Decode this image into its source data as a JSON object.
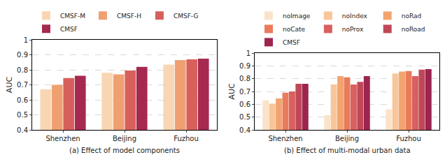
{
  "chart_data": [
    {
      "type": "bar",
      "title": "(a) Effect of model components",
      "ylabel": "AUC",
      "categories": [
        "Shenzhen",
        "Beijing",
        "Fuzhou"
      ],
      "series": [
        {
          "name": "CMSF-M",
          "color": "#f8d6b3",
          "values": [
            0.67,
            0.78,
            0.835
          ]
        },
        {
          "name": "CMSF-H",
          "color": "#efa070",
          "values": [
            0.7,
            0.77,
            0.865
          ]
        },
        {
          "name": "CMSF-G",
          "color": "#d8605c",
          "values": [
            0.745,
            0.795,
            0.87
          ]
        },
        {
          "name": "CMSF",
          "color": "#a6294f",
          "values": [
            0.76,
            0.82,
            0.875
          ]
        }
      ],
      "ylim": [
        0.4,
        1.0
      ],
      "yticks": [
        0.4,
        0.5,
        0.6,
        0.7,
        0.8,
        0.9,
        1.0
      ],
      "grid": true,
      "legend": "upper left"
    },
    {
      "type": "bar",
      "title": "(b) Effect of multi-modal urban data",
      "ylabel": "AUC",
      "categories": [
        "Shenzhen",
        "Beijing",
        "Fuzhou"
      ],
      "series": [
        {
          "name": "noImage",
          "color": "#fbe3c9",
          "values": [
            0.63,
            0.515,
            0.56
          ]
        },
        {
          "name": "noIndex",
          "color": "#f8c69a",
          "values": [
            0.605,
            0.755,
            0.84
          ]
        },
        {
          "name": "noRad",
          "color": "#f2a470",
          "values": [
            0.645,
            0.82,
            0.855
          ]
        },
        {
          "name": "noCate",
          "color": "#e97b5b",
          "values": [
            0.69,
            0.81,
            0.86
          ]
        },
        {
          "name": "noProx",
          "color": "#d8605f",
          "values": [
            0.7,
            0.755,
            0.82
          ]
        },
        {
          "name": "noRoad",
          "color": "#bf4757",
          "values": [
            0.76,
            0.775,
            0.87
          ]
        },
        {
          "name": "CMSF",
          "color": "#9c2550",
          "values": [
            0.76,
            0.82,
            0.875
          ]
        }
      ],
      "ylim": [
        0.4,
        1.0
      ],
      "yticks": [
        0.4,
        0.5,
        0.6,
        0.7,
        0.8,
        0.9,
        1.0
      ],
      "grid": true,
      "legend": "upper left"
    }
  ]
}
